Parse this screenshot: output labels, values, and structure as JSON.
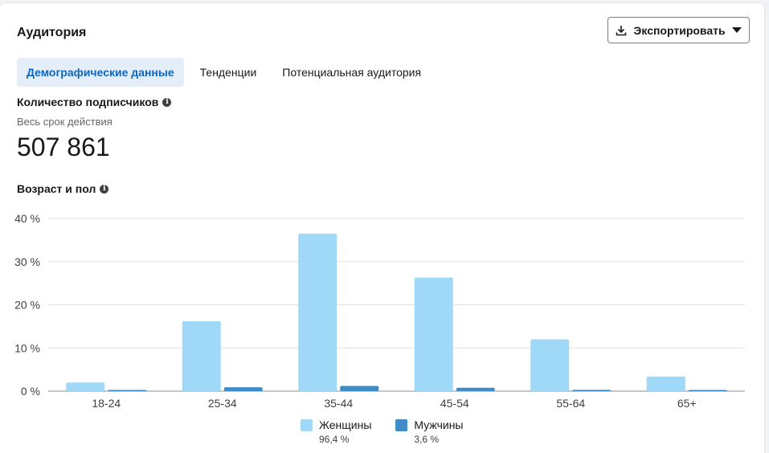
{
  "card": {
    "title": "Аудитория"
  },
  "export_button": {
    "label": "Экспортировать",
    "icon": "download-icon",
    "caret": "caret-down-icon"
  },
  "tabs": [
    {
      "label": "Демографические данные",
      "active": true
    },
    {
      "label": "Тенденции",
      "active": false
    },
    {
      "label": "Потенциальная аудитория",
      "active": false
    }
  ],
  "followers": {
    "title": "Количество подписчиков",
    "period": "Весь срок действия",
    "value": "507 861",
    "info_icon": "i"
  },
  "age_gender": {
    "title": "Возраст и пол",
    "info_icon": "i"
  },
  "legend": [
    {
      "name": "Женщины",
      "pct": "96,4 %"
    },
    {
      "name": "Мужчины",
      "pct": "3,6 %"
    }
  ],
  "colors": {
    "female": "#9fd9f7",
    "male": "#3e8dc8",
    "accent": "#0a66c2",
    "grid": "#e0e0e0"
  },
  "chart_data": {
    "type": "bar",
    "categories": [
      "18-24",
      "25-34",
      "35-44",
      "45-54",
      "55-64",
      "65+"
    ],
    "y_ticks": [
      "0 %",
      "10 %",
      "20 %",
      "30 %",
      "40 %"
    ],
    "ylim": [
      0,
      40
    ],
    "series": [
      {
        "name": "Женщины",
        "values": [
          2.0,
          16.2,
          36.5,
          26.3,
          12.0,
          3.4
        ]
      },
      {
        "name": "Мужчины",
        "values": [
          0.2,
          0.9,
          1.2,
          0.8,
          0.3,
          0.1
        ]
      }
    ],
    "legend_position": "bottom",
    "grid": true
  }
}
